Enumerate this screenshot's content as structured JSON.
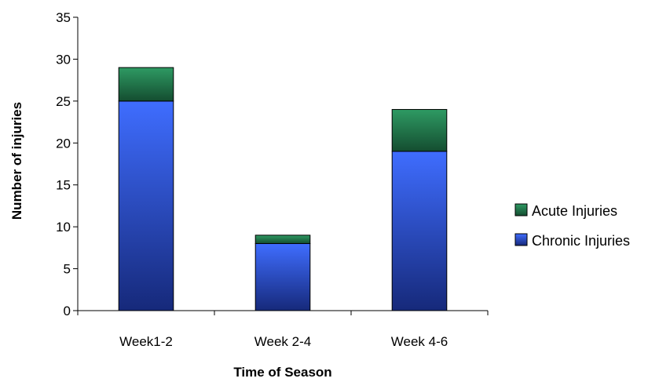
{
  "chart_data": {
    "type": "bar",
    "stacked": true,
    "title": "",
    "xlabel": "Time of Season",
    "ylabel": "Number of injuries",
    "categories": [
      "Week1-2",
      "Week 2-4",
      "Week 4-6"
    ],
    "series": [
      {
        "name": "Chronic Injuries",
        "values": [
          25,
          8,
          19
        ],
        "color": "#2f5fe8"
      },
      {
        "name": "Acute Injuries",
        "values": [
          4,
          1,
          5
        ],
        "color": "#1f7a4f"
      }
    ],
    "ylim": [
      0,
      35
    ],
    "yticks": [
      "0",
      "5",
      "10",
      "15",
      "20",
      "25",
      "30",
      "35"
    ],
    "grid": false,
    "legend_position": "right",
    "legend_order": [
      "Acute Injuries",
      "Chronic Injuries"
    ]
  }
}
